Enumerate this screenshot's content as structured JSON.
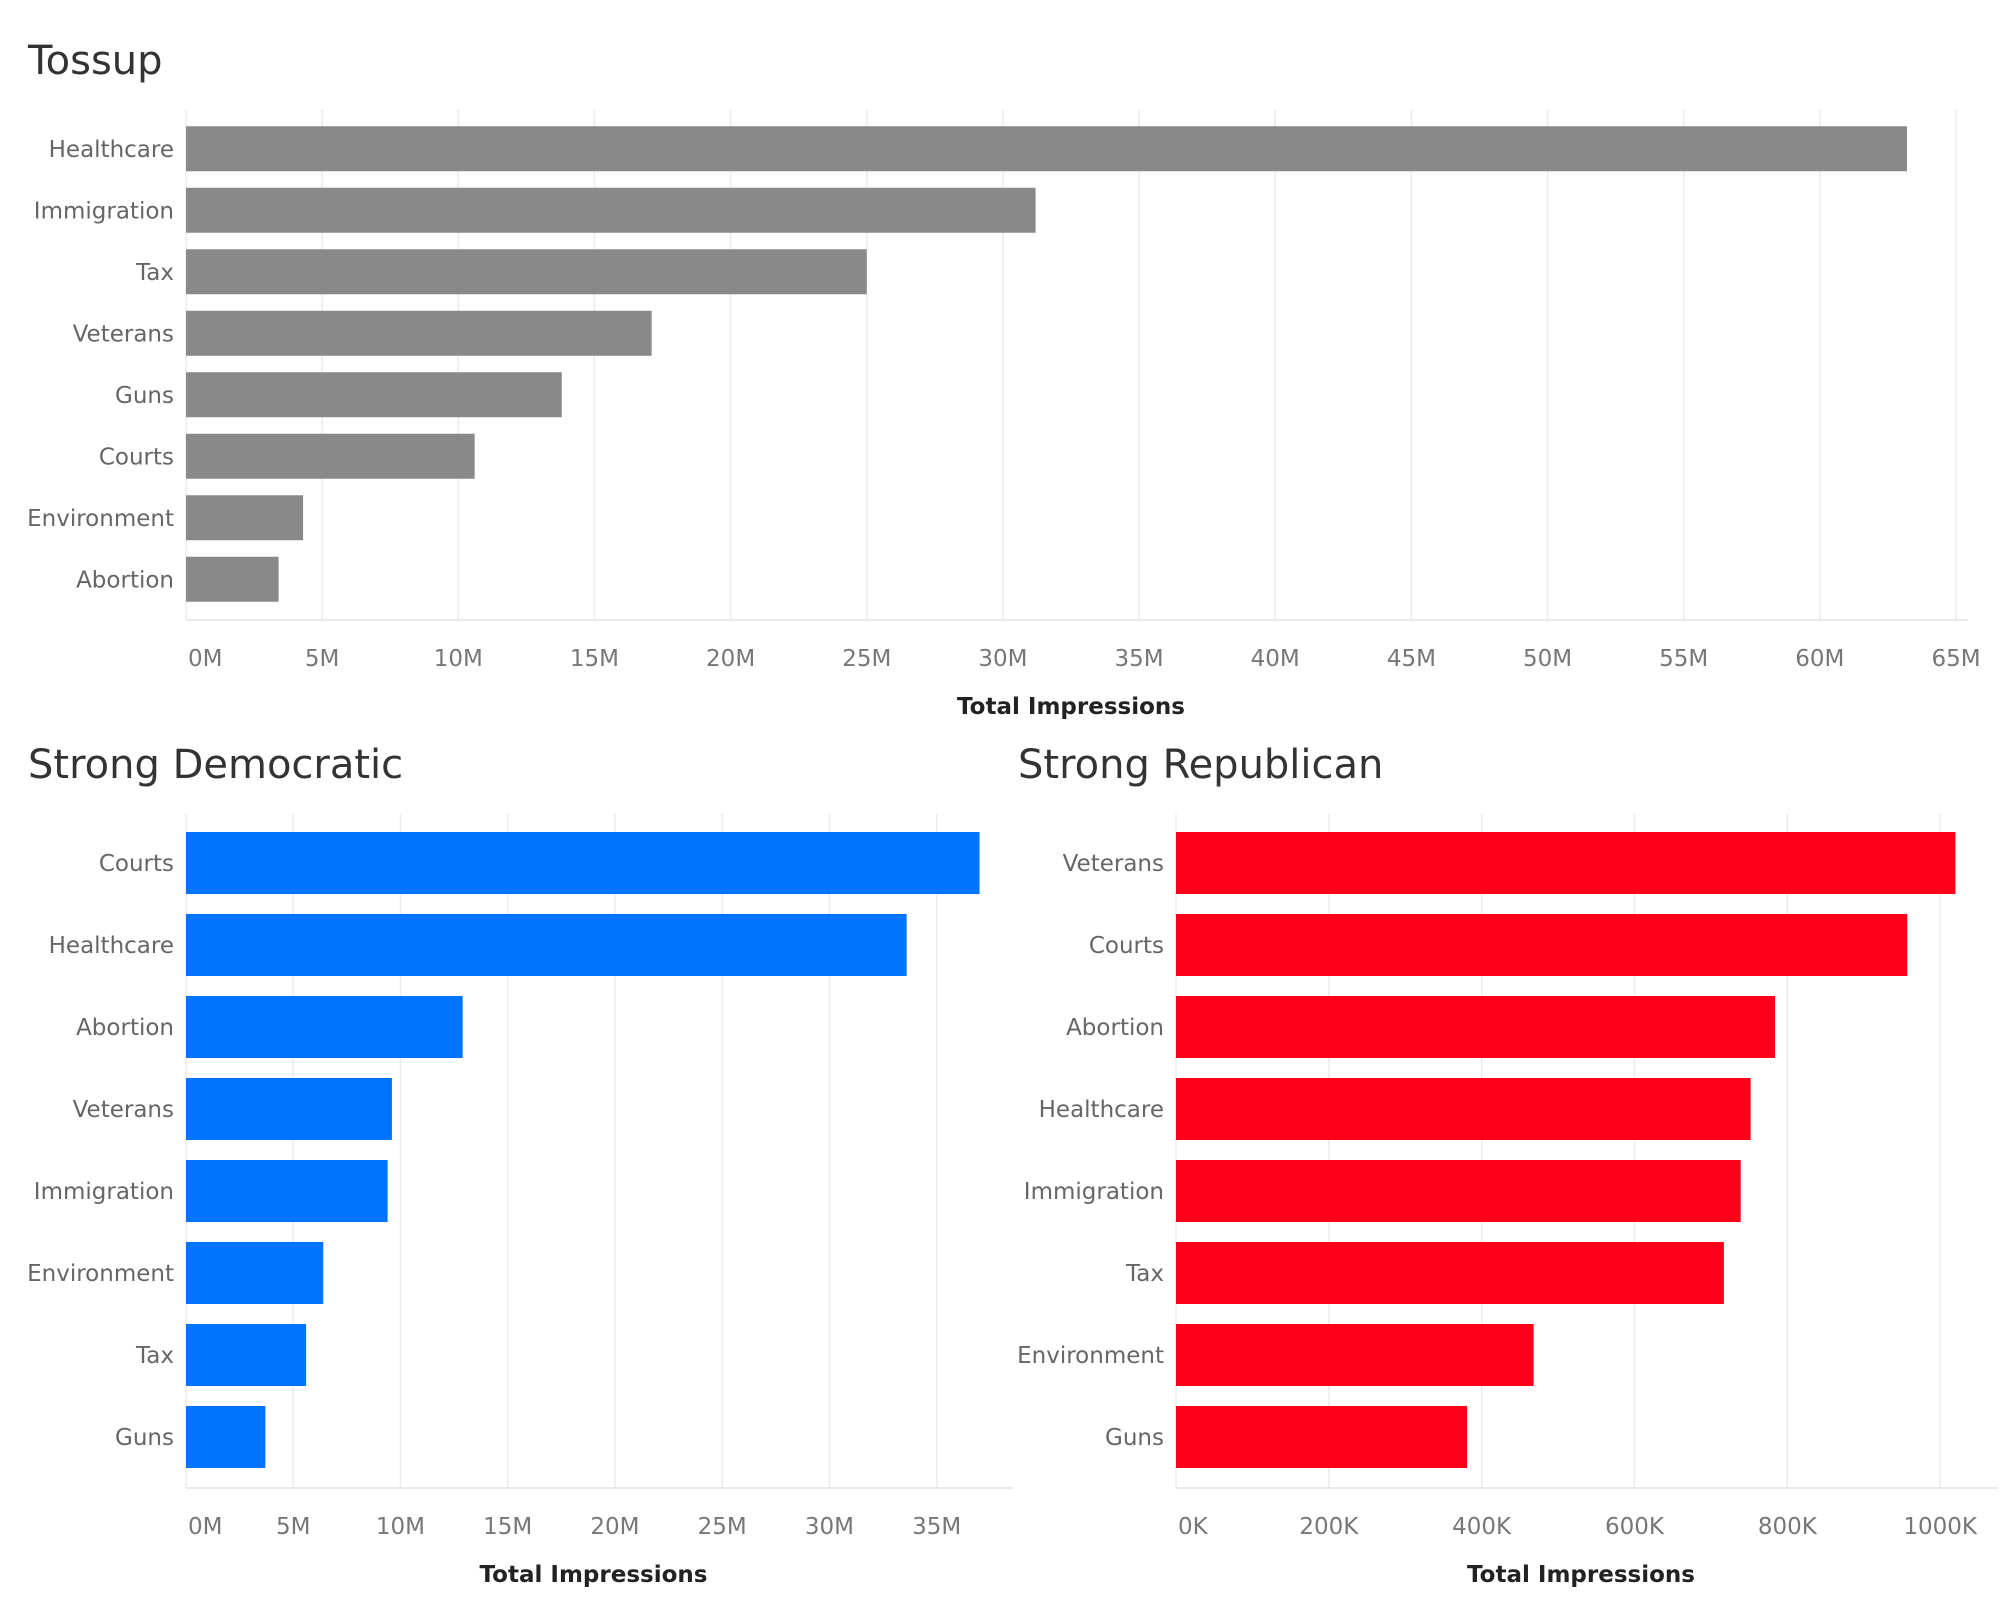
{
  "chart_data": [
    {
      "id": "tossup",
      "type": "bar",
      "orientation": "horizontal",
      "title": "Tossup",
      "xlabel": "Total Impressions",
      "color": "#898989",
      "categories": [
        "Healthcare",
        "Immigration",
        "Tax",
        "Veterans",
        "Guns",
        "Courts",
        "Environment",
        "Abortion"
      ],
      "values": [
        63.2,
        31.2,
        25.0,
        17.1,
        13.8,
        10.6,
        4.3,
        3.4
      ],
      "unit": "M",
      "xlim": [
        0,
        65
      ],
      "ticks": [
        0,
        5,
        10,
        15,
        20,
        25,
        30,
        35,
        40,
        45,
        50,
        55,
        60,
        65
      ],
      "tick_labels": [
        "0M",
        "5M",
        "10M",
        "15M",
        "20M",
        "25M",
        "30M",
        "35M",
        "40M",
        "45M",
        "50M",
        "55M",
        "60M",
        "65M"
      ],
      "grid": true
    },
    {
      "id": "strong-democratic",
      "type": "bar",
      "orientation": "horizontal",
      "title": "Strong Democratic",
      "xlabel": "Total Impressions",
      "color": "#0073ff",
      "categories": [
        "Courts",
        "Healthcare",
        "Abortion",
        "Veterans",
        "Immigration",
        "Environment",
        "Tax",
        "Guns"
      ],
      "values": [
        37.0,
        33.6,
        12.9,
        9.6,
        9.4,
        6.4,
        5.6,
        3.7
      ],
      "unit": "M",
      "xlim": [
        0,
        38
      ],
      "ticks": [
        0,
        5,
        10,
        15,
        20,
        25,
        30,
        35
      ],
      "tick_labels": [
        "0M",
        "5M",
        "10M",
        "15M",
        "20M",
        "25M",
        "30M",
        "35M"
      ],
      "grid": true
    },
    {
      "id": "strong-republican",
      "type": "bar",
      "orientation": "horizontal",
      "title": "Strong Republican",
      "xlabel": "Total Impressions",
      "color": "#ff001b",
      "categories": [
        "Veterans",
        "Courts",
        "Abortion",
        "Healthcare",
        "Immigration",
        "Tax",
        "Environment",
        "Guns"
      ],
      "values": [
        1020,
        957,
        784,
        752,
        739,
        717,
        468,
        381
      ],
      "unit": "K",
      "xlim": [
        0,
        1060
      ],
      "ticks": [
        0,
        200,
        400,
        600,
        800,
        1000
      ],
      "tick_labels": [
        "0K",
        "200K",
        "400K",
        "600K",
        "800K",
        "1000K"
      ],
      "grid": true
    }
  ]
}
